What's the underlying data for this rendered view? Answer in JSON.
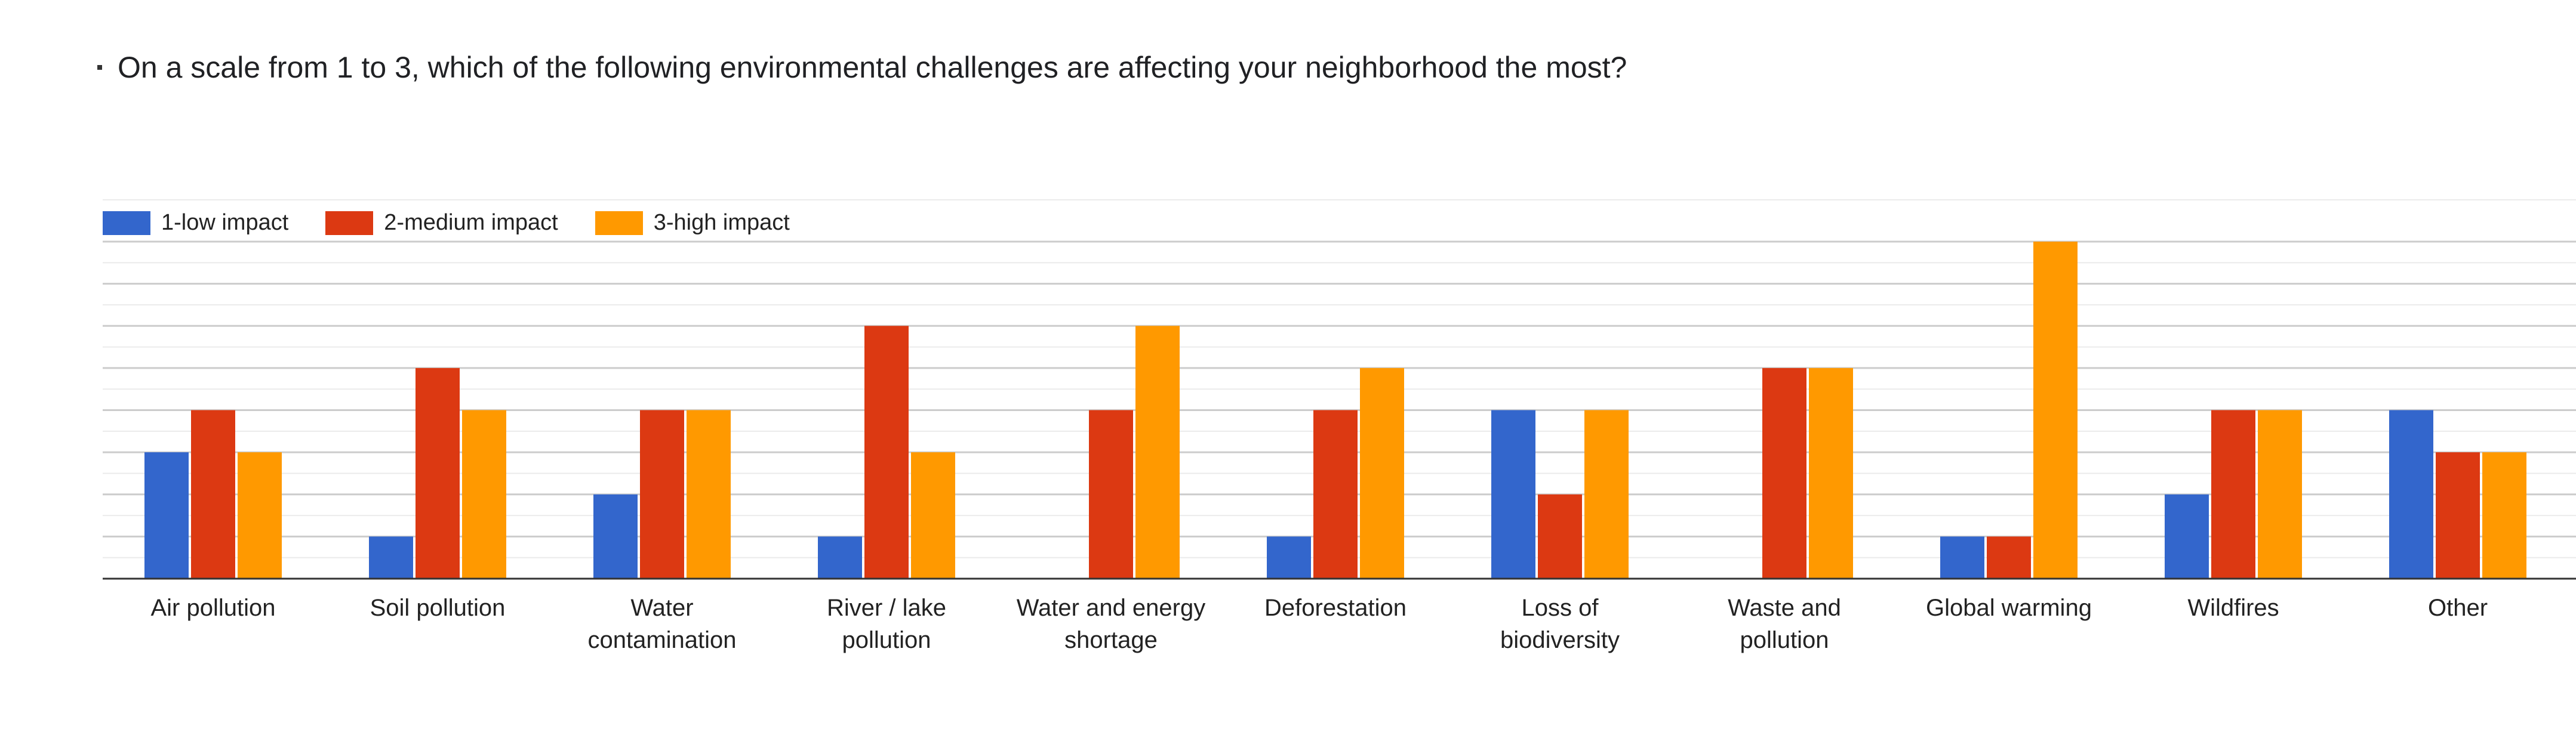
{
  "question": {
    "text": "On a scale from 1 to 3, which of the following environmental challenges are affecting your neighborhood the most?"
  },
  "chart_data": {
    "type": "bar",
    "title": "",
    "xlabel": "",
    "ylabel": "",
    "ylim": [
      0,
      8
    ],
    "grid": true,
    "legend_position": "top-left",
    "categories": [
      [
        "Air pollution"
      ],
      [
        "Soil pollution"
      ],
      [
        "Water",
        "contamination"
      ],
      [
        "River / lake",
        "pollution"
      ],
      [
        "Water and energy",
        "shortage"
      ],
      [
        "Deforestation"
      ],
      [
        "Loss of",
        "biodiversity"
      ],
      [
        "Waste and",
        "pollution"
      ],
      [
        "Global warming"
      ],
      [
        "Wildfires"
      ],
      [
        "Other"
      ]
    ],
    "series": [
      {
        "name": "1-low impact",
        "color": "#3366cc",
        "values": [
          3,
          1,
          2,
          1,
          0,
          1,
          4,
          0,
          1,
          2,
          4
        ]
      },
      {
        "name": "2-medium impact",
        "color": "#dc3912",
        "values": [
          4,
          5,
          4,
          6,
          4,
          4,
          2,
          5,
          1,
          4,
          3
        ]
      },
      {
        "name": "3-high impact",
        "color": "#ff9900",
        "values": [
          3,
          4,
          4,
          3,
          6,
          5,
          4,
          5,
          8,
          4,
          3
        ]
      }
    ]
  }
}
